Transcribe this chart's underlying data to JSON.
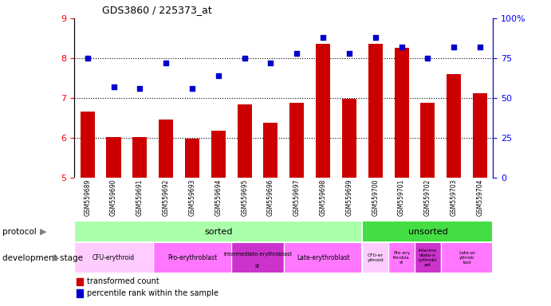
{
  "title": "GDS3860 / 225373_at",
  "samples": [
    "GSM559689",
    "GSM559690",
    "GSM559691",
    "GSM559692",
    "GSM559693",
    "GSM559694",
    "GSM559695",
    "GSM559696",
    "GSM559697",
    "GSM559698",
    "GSM559699",
    "GSM559700",
    "GSM559701",
    "GSM559702",
    "GSM559703",
    "GSM559704"
  ],
  "transformed_count": [
    6.65,
    6.02,
    6.01,
    6.45,
    5.97,
    6.18,
    6.83,
    6.38,
    6.88,
    8.35,
    6.98,
    8.35,
    8.25,
    6.87,
    7.6,
    7.12
  ],
  "percentile_rank": [
    75,
    57,
    56,
    72,
    56,
    64,
    75,
    72,
    78,
    88,
    78,
    88,
    82,
    75,
    82,
    82
  ],
  "ylim_left": [
    5,
    9
  ],
  "ylim_right": [
    0,
    100
  ],
  "yticks_left": [
    5,
    6,
    7,
    8,
    9
  ],
  "yticks_right": [
    0,
    25,
    50,
    75,
    100
  ],
  "bar_color": "#cc0000",
  "dot_color": "#0000cc",
  "protocol_sorted_color": "#aaffaa",
  "protocol_unsorted_color": "#44dd44",
  "protocol_sorted_samples": 11,
  "protocol_unsorted_samples": 5,
  "dev_stage_colors_sorted": [
    "#ffccff",
    "#ff77ff",
    "#cc33cc",
    "#ff77ff"
  ],
  "dev_stage_colors_unsorted": [
    "#ffccff",
    "#ff77ff",
    "#cc33cc",
    "#ff77ff"
  ],
  "dev_stages_sorted": [
    {
      "label": "CFU-erythroid",
      "count": 3
    },
    {
      "label": "Pro-erythroblast",
      "count": 3
    },
    {
      "label": "Intermediate-erythroblast\nst",
      "count": 2
    },
    {
      "label": "Late-erythroblast",
      "count": 3
    }
  ],
  "dev_stages_unsorted": [
    {
      "label": "CFU-er\nythroid",
      "count": 1
    },
    {
      "label": "Pro-ery\nthrobla\nst",
      "count": 1
    },
    {
      "label": "Interme\ndiate-e\nrythrobl\nast",
      "count": 1
    },
    {
      "label": "Late-er\nythrob\nlast",
      "count": 2
    }
  ],
  "legend_red": "transformed count",
  "legend_blue": "percentile rank within the sample",
  "bg_label_color": "#cccccc"
}
